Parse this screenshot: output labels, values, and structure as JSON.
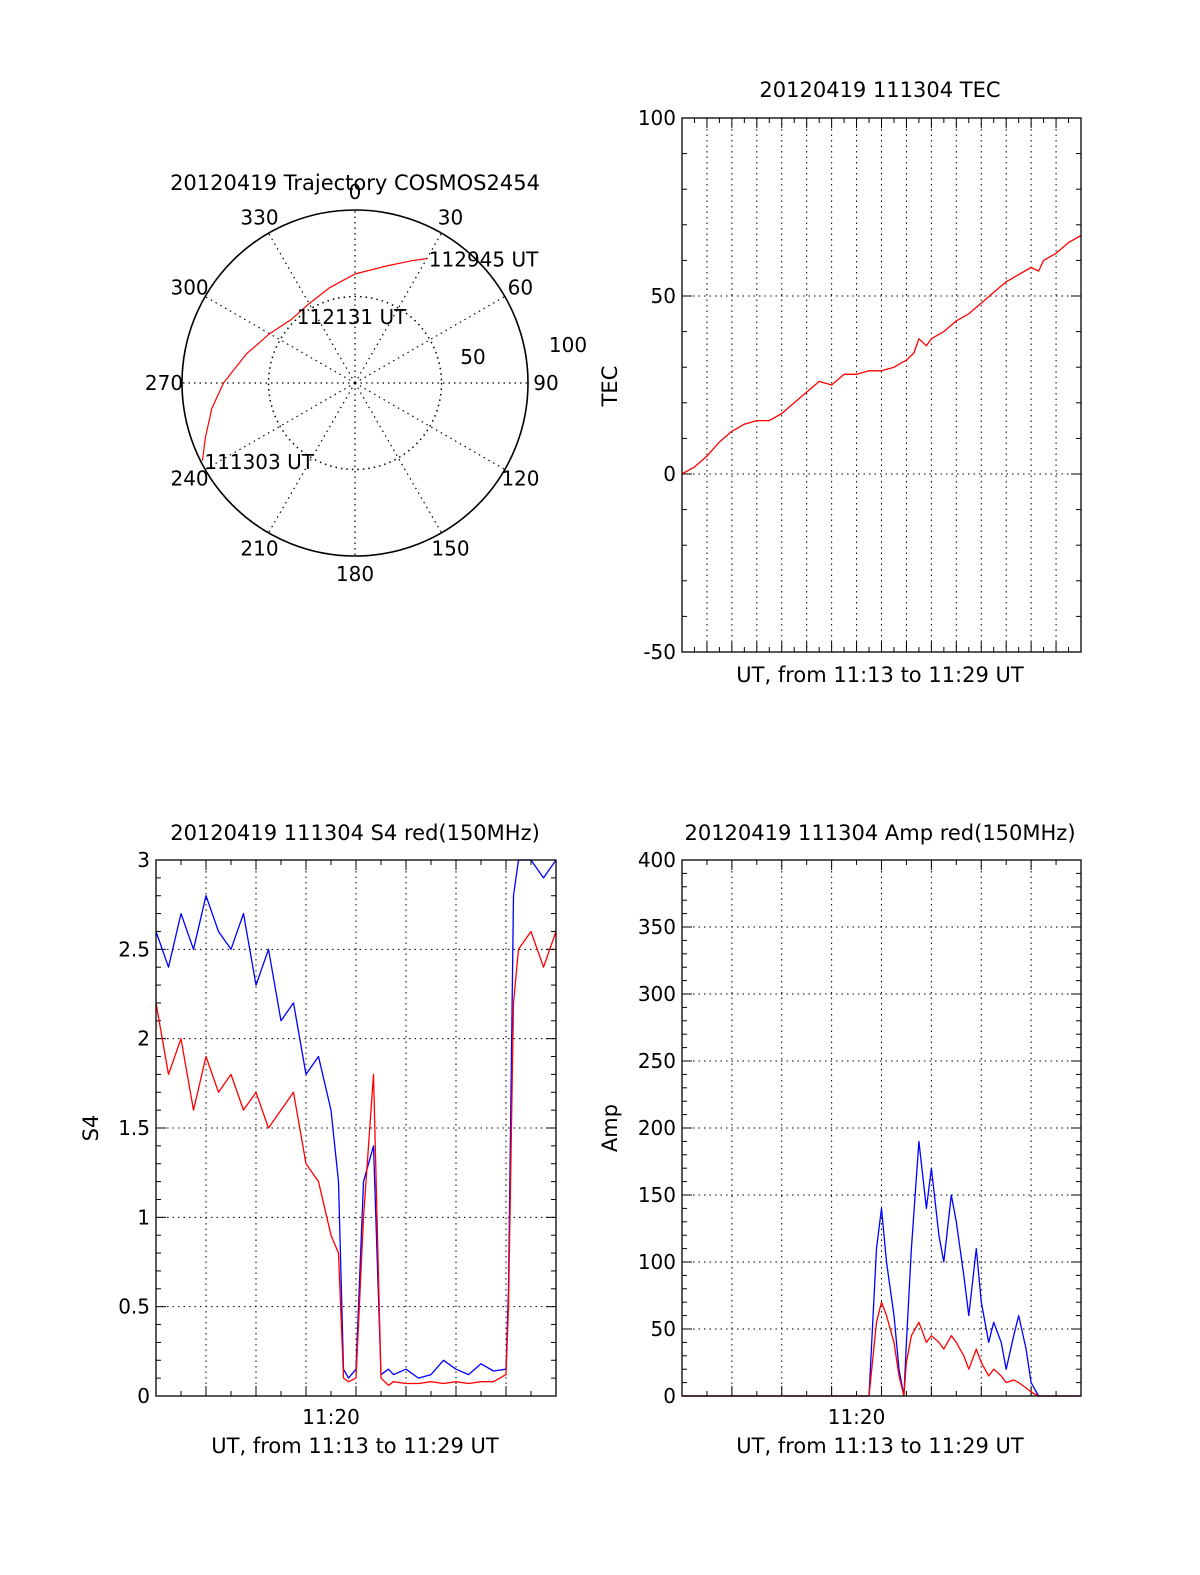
{
  "colors": {
    "red": "#ff0000",
    "blue": "#0000ff",
    "axis": "#000000",
    "grid": "#000000"
  },
  "chart_data": [
    {
      "type": "polar",
      "title": "20120419 Trajectory COSMOS2454",
      "angle_labels": [
        "0",
        "30",
        "60",
        "90",
        "120",
        "150",
        "180",
        "210",
        "240",
        "270",
        "300",
        "330"
      ],
      "angle_label_rotation_deg": 0,
      "radial_labels": [
        "50",
        "100"
      ],
      "rlim": [
        0,
        100
      ],
      "grid": true,
      "series": [
        {
          "color": "red",
          "points": [
            [
              243,
              99
            ],
            [
              250,
              92
            ],
            [
              260,
              84
            ],
            [
              270,
              76
            ],
            [
              285,
              65
            ],
            [
              300,
              57
            ],
            [
              315,
              52
            ],
            [
              330,
              53
            ],
            [
              345,
              57
            ],
            [
              0,
              63
            ],
            [
              15,
              70
            ],
            [
              25,
              78
            ],
            [
              30,
              83
            ]
          ]
        }
      ],
      "annotations": [
        {
          "text": "111303 UT",
          "az": 243,
          "r": 99
        },
        {
          "text": "112131 UT",
          "az": 318,
          "r": 52
        },
        {
          "text": "112945 UT",
          "az": 30,
          "r": 83
        }
      ]
    },
    {
      "type": "line",
      "title": "20120419 111304 TEC",
      "xlabel": "UT, from 11:13 to 11:29 UT",
      "ylabel": "TEC",
      "xlim": [
        0,
        16
      ],
      "ylim": [
        -50,
        100
      ],
      "yticks": [
        "-50",
        "0",
        "50",
        "100"
      ],
      "grid": true,
      "series": [
        {
          "color": "red",
          "x": [
            0,
            0.5,
            1.0,
            1.5,
            2.0,
            2.5,
            3.0,
            3.5,
            4.0,
            4.5,
            5.0,
            5.5,
            6.0,
            6.5,
            7.0,
            7.5,
            8.0,
            8.5,
            9.0,
            9.3,
            9.5,
            9.8,
            10.0,
            10.5,
            11.0,
            11.5,
            12.0,
            12.5,
            13.0,
            13.5,
            14.0,
            14.3,
            14.5,
            15.0,
            15.5,
            16.0
          ],
          "y": [
            0,
            2,
            5,
            9,
            12,
            14,
            15,
            15,
            17,
            20,
            23,
            26,
            25,
            28,
            28,
            29,
            29,
            30,
            32,
            34,
            38,
            36,
            38,
            40,
            43,
            45,
            48,
            51,
            54,
            56,
            58,
            57,
            60,
            62,
            65,
            67
          ]
        }
      ]
    },
    {
      "type": "line",
      "title": "20120419 111304 S4 red(150MHz)",
      "xlabel": "UT, from 11:13 to 11:29 UT",
      "ylabel": "S4",
      "xlim": [
        0,
        16
      ],
      "ylim": [
        0,
        3
      ],
      "xticks": [
        {
          "value": 7,
          "label": "11:20"
        }
      ],
      "yticks": [
        "0",
        "0.5",
        "1",
        "1.5",
        "2",
        "2.5",
        "3"
      ],
      "grid": true,
      "series": [
        {
          "color": "blue",
          "x": [
            0,
            0.5,
            1.0,
            1.5,
            2.0,
            2.5,
            3.0,
            3.5,
            4.0,
            4.5,
            5.0,
            5.5,
            6.0,
            6.5,
            7.0,
            7.3,
            7.5,
            7.7,
            8.0,
            8.3,
            8.7,
            9.0,
            9.3,
            9.5,
            10.0,
            10.5,
            11.0,
            11.5,
            12.0,
            12.5,
            13.0,
            13.5,
            14.0,
            14.1,
            14.3,
            14.5,
            15.0,
            15.5,
            16.0
          ],
          "y": [
            2.6,
            2.4,
            2.7,
            2.5,
            2.8,
            2.6,
            2.5,
            2.7,
            2.3,
            2.5,
            2.1,
            2.2,
            1.8,
            1.9,
            1.6,
            1.2,
            0.15,
            0.1,
            0.15,
            1.2,
            1.4,
            0.12,
            0.15,
            0.12,
            0.15,
            0.1,
            0.12,
            0.2,
            0.15,
            0.12,
            0.18,
            0.14,
            0.15,
            0.6,
            2.8,
            3.0,
            3.0,
            2.9,
            3.0
          ]
        },
        {
          "color": "red",
          "x": [
            0,
            0.5,
            1.0,
            1.5,
            2.0,
            2.5,
            3.0,
            3.5,
            4.0,
            4.5,
            5.0,
            5.5,
            6.0,
            6.5,
            7.0,
            7.3,
            7.5,
            7.7,
            8.0,
            8.3,
            8.7,
            9.0,
            9.3,
            9.5,
            10.0,
            10.5,
            11.0,
            11.5,
            12.0,
            12.5,
            13.0,
            13.5,
            14.0,
            14.1,
            14.3,
            14.5,
            15.0,
            15.5,
            16.0
          ],
          "y": [
            2.2,
            1.8,
            2.0,
            1.6,
            1.9,
            1.7,
            1.8,
            1.6,
            1.7,
            1.5,
            1.6,
            1.7,
            1.3,
            1.2,
            0.9,
            0.8,
            0.1,
            0.08,
            0.1,
            1.0,
            1.8,
            0.1,
            0.06,
            0.08,
            0.07,
            0.07,
            0.08,
            0.07,
            0.08,
            0.07,
            0.08,
            0.08,
            0.12,
            0.5,
            2.2,
            2.5,
            2.6,
            2.4,
            2.6
          ]
        }
      ]
    },
    {
      "type": "line",
      "title": "20120419 111304 Amp red(150MHz)",
      "xlabel": "UT, from 11:13 to 11:29 UT",
      "ylabel": "Amp",
      "xlim": [
        0,
        16
      ],
      "ylim": [
        0,
        400
      ],
      "xticks": [
        {
          "value": 7,
          "label": "11:20"
        }
      ],
      "yticks": [
        "0",
        "50",
        "100",
        "150",
        "200",
        "250",
        "300",
        "350",
        "400"
      ],
      "grid": true,
      "series": [
        {
          "color": "blue",
          "x": [
            0,
            6.8,
            7.5,
            7.8,
            8.0,
            8.2,
            8.5,
            8.7,
            8.9,
            9.0,
            9.2,
            9.5,
            9.8,
            10.0,
            10.3,
            10.5,
            10.8,
            11.0,
            11.3,
            11.5,
            11.8,
            12.0,
            12.3,
            12.5,
            12.8,
            13.0,
            13.3,
            13.5,
            13.8,
            14.0,
            14.3,
            16.0
          ],
          "y": [
            0,
            0,
            0,
            110,
            140,
            100,
            60,
            20,
            0,
            40,
            110,
            190,
            140,
            170,
            120,
            100,
            150,
            130,
            90,
            60,
            110,
            70,
            40,
            55,
            40,
            20,
            45,
            60,
            35,
            10,
            0,
            0
          ]
        },
        {
          "color": "red",
          "x": [
            0,
            6.8,
            7.5,
            7.8,
            8.0,
            8.2,
            8.5,
            8.7,
            8.9,
            9.0,
            9.2,
            9.5,
            9.8,
            10.0,
            10.3,
            10.5,
            10.8,
            11.0,
            11.3,
            11.5,
            11.8,
            12.0,
            12.3,
            12.5,
            12.8,
            13.0,
            13.3,
            13.5,
            13.8,
            14.0,
            14.3,
            16.0
          ],
          "y": [
            0,
            0,
            0,
            55,
            70,
            60,
            40,
            15,
            0,
            25,
            45,
            55,
            40,
            45,
            40,
            35,
            45,
            40,
            30,
            20,
            35,
            25,
            15,
            20,
            15,
            10,
            12,
            10,
            6,
            3,
            0,
            0
          ]
        }
      ]
    }
  ]
}
